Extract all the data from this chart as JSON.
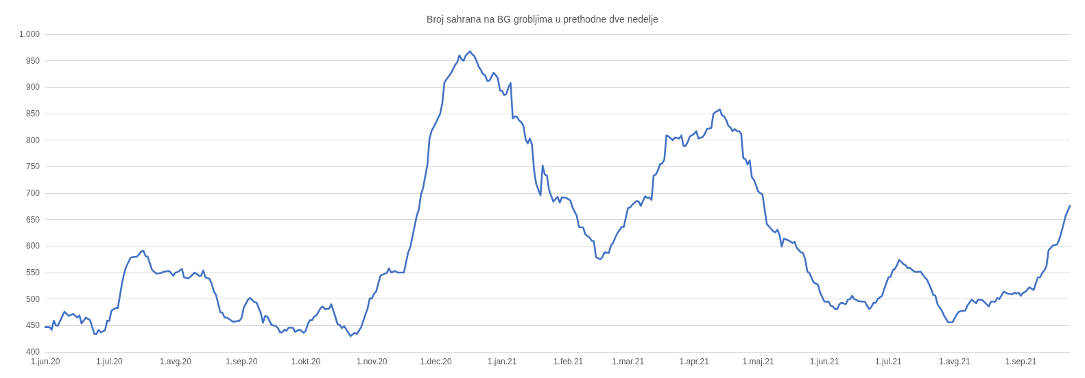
{
  "chart_data": {
    "type": "line",
    "title": "Broj sahrana na BG grobljima u prethodne dve nedelje",
    "color": "#4472c4",
    "marker": "none",
    "grid": "y",
    "x": [
      "2020-06-01",
      "2020-06-03",
      "2020-06-04",
      "2020-06-05",
      "2020-06-06",
      "2020-06-07",
      "2020-06-08",
      "2020-06-10",
      "2020-06-12",
      "2020-06-14",
      "2020-06-16",
      "2020-06-17",
      "2020-06-18",
      "2020-06-20",
      "2020-06-22",
      "2020-06-24",
      "2020-06-25",
      "2020-06-26",
      "2020-06-27",
      "2020-06-29",
      "2020-06-30",
      "2020-07-01",
      "2020-07-02",
      "2020-07-04",
      "2020-07-05",
      "2020-07-07",
      "2020-07-08",
      "2020-07-09",
      "2020-07-11",
      "2020-07-12",
      "2020-07-14",
      "2020-07-16",
      "2020-07-17",
      "2020-07-18",
      "2020-07-19",
      "2020-07-21",
      "2020-07-23",
      "2020-07-25",
      "2020-07-27",
      "2020-07-29",
      "2020-07-31",
      "2020-08-01",
      "2020-08-02",
      "2020-08-04",
      "2020-08-05",
      "2020-08-07",
      "2020-08-08",
      "2020-08-10",
      "2020-08-12",
      "2020-08-13",
      "2020-08-14",
      "2020-08-15",
      "2020-08-17",
      "2020-08-18",
      "2020-08-19",
      "2020-08-20",
      "2020-08-22",
      "2020-08-23",
      "2020-08-24",
      "2020-08-25",
      "2020-08-28",
      "2020-08-31",
      "2020-09-01",
      "2020-09-02",
      "2020-09-04",
      "2020-09-05",
      "2020-09-07",
      "2020-09-08",
      "2020-09-10",
      "2020-09-11",
      "2020-09-12",
      "2020-09-13",
      "2020-09-15",
      "2020-09-17",
      "2020-09-18",
      "2020-09-19",
      "2020-09-20",
      "2020-09-21",
      "2020-09-22",
      "2020-09-23",
      "2020-09-25",
      "2020-09-26",
      "2020-09-28",
      "2020-09-29",
      "2020-09-30",
      "2020-10-01",
      "2020-10-02",
      "2020-10-03",
      "2020-10-04",
      "2020-10-05",
      "2020-10-06",
      "2020-10-08",
      "2020-10-09",
      "2020-10-10",
      "2020-10-12",
      "2020-10-13",
      "2020-10-15",
      "2020-10-16",
      "2020-10-17",
      "2020-10-18",
      "2020-10-19",
      "2020-10-22",
      "2020-10-24",
      "2020-10-25",
      "2020-10-27",
      "2020-10-29",
      "2020-10-30",
      "2020-10-31",
      "2020-11-01",
      "2020-11-02",
      "2020-11-03",
      "2020-11-05",
      "2020-11-07",
      "2020-11-08",
      "2020-11-09",
      "2020-11-10",
      "2020-11-12",
      "2020-11-13",
      "2020-11-16",
      "2020-11-18",
      "2020-11-19",
      "2020-11-21",
      "2020-11-22",
      "2020-11-23",
      "2020-11-24",
      "2020-11-25",
      "2020-11-27",
      "2020-11-28",
      "2020-11-29",
      "2020-11-30",
      "2020-12-01",
      "2020-12-03",
      "2020-12-04",
      "2020-12-05",
      "2020-12-06",
      "2020-12-08",
      "2020-12-10",
      "2020-12-11",
      "2020-12-12",
      "2020-12-13",
      "2020-12-14",
      "2020-12-15",
      "2020-12-17",
      "2020-12-18",
      "2020-12-19",
      "2020-12-20",
      "2020-12-21",
      "2020-12-22",
      "2020-12-23",
      "2020-12-24",
      "2020-12-25",
      "2020-12-26",
      "2020-12-28",
      "2020-12-29",
      "2020-12-30",
      "2020-12-31",
      "2021-01-01",
      "2021-01-02",
      "2021-01-03",
      "2021-01-04",
      "2021-01-05",
      "2021-01-06",
      "2021-01-07",
      "2021-01-08",
      "2021-01-09",
      "2021-01-10",
      "2021-01-11",
      "2021-01-12",
      "2021-01-13",
      "2021-01-14",
      "2021-01-15",
      "2021-01-16",
      "2021-01-17",
      "2021-01-19",
      "2021-01-20",
      "2021-01-21",
      "2021-01-22",
      "2021-01-23",
      "2021-01-25",
      "2021-01-27",
      "2021-01-28",
      "2021-01-29",
      "2021-01-31",
      "2021-02-02",
      "2021-02-03",
      "2021-02-05",
      "2021-02-06",
      "2021-02-08",
      "2021-02-09",
      "2021-02-11",
      "2021-02-12",
      "2021-02-13",
      "2021-02-14",
      "2021-02-16",
      "2021-02-17",
      "2021-02-18",
      "2021-02-20",
      "2021-02-21",
      "2021-02-22",
      "2021-02-23",
      "2021-02-24",
      "2021-02-26",
      "2021-02-27",
      "2021-03-01",
      "2021-03-02",
      "2021-03-03",
      "2021-03-05",
      "2021-03-06",
      "2021-03-07",
      "2021-03-09",
      "2021-03-10",
      "2021-03-11",
      "2021-03-12",
      "2021-03-13",
      "2021-03-14",
      "2021-03-15",
      "2021-03-16",
      "2021-03-17",
      "2021-03-18",
      "2021-03-19",
      "2021-03-20",
      "2021-03-22",
      "2021-03-23",
      "2021-03-25",
      "2021-03-26",
      "2021-03-27",
      "2021-03-28",
      "2021-03-29",
      "2021-03-30",
      "2021-04-01",
      "2021-04-02",
      "2021-04-03",
      "2021-04-05",
      "2021-04-06",
      "2021-04-07",
      "2021-04-09",
      "2021-04-10",
      "2021-04-11",
      "2021-04-13",
      "2021-04-14",
      "2021-04-15",
      "2021-04-16",
      "2021-04-17",
      "2021-04-18",
      "2021-04-19",
      "2021-04-20",
      "2021-04-21",
      "2021-04-22",
      "2021-04-23",
      "2021-04-24",
      "2021-04-25",
      "2021-04-26",
      "2021-04-27",
      "2021-04-28",
      "2021-04-29",
      "2021-05-01",
      "2021-05-03",
      "2021-05-04",
      "2021-05-05",
      "2021-05-06",
      "2021-05-08",
      "2021-05-09",
      "2021-05-10",
      "2021-05-11",
      "2021-05-12",
      "2021-05-13",
      "2021-05-15",
      "2021-05-17",
      "2021-05-18",
      "2021-05-19",
      "2021-05-21",
      "2021-05-22",
      "2021-05-23",
      "2021-05-24",
      "2021-05-25",
      "2021-05-27",
      "2021-05-29",
      "2021-05-30",
      "2021-06-01",
      "2021-06-03",
      "2021-06-04",
      "2021-06-05",
      "2021-06-06",
      "2021-06-07",
      "2021-06-08",
      "2021-06-09",
      "2021-06-11",
      "2021-06-12",
      "2021-06-13",
      "2021-06-14",
      "2021-06-15",
      "2021-06-17",
      "2021-06-19",
      "2021-06-20",
      "2021-06-21",
      "2021-06-22",
      "2021-06-23",
      "2021-06-24",
      "2021-06-25",
      "2021-06-26",
      "2021-06-28",
      "2021-06-29",
      "2021-07-01",
      "2021-07-02",
      "2021-07-03",
      "2021-07-04",
      "2021-07-05",
      "2021-07-06",
      "2021-07-08",
      "2021-07-09",
      "2021-07-10",
      "2021-07-11",
      "2021-07-13",
      "2021-07-14",
      "2021-07-16",
      "2021-07-18",
      "2021-07-19",
      "2021-07-21",
      "2021-07-22",
      "2021-07-23",
      "2021-07-24",
      "2021-07-26",
      "2021-07-27",
      "2021-07-29",
      "2021-07-31",
      "2021-08-02",
      "2021-08-03",
      "2021-08-05",
      "2021-08-06",
      "2021-08-07",
      "2021-08-09",
      "2021-08-11",
      "2021-08-12",
      "2021-08-14",
      "2021-08-16",
      "2021-08-17",
      "2021-08-18",
      "2021-08-20",
      "2021-08-21",
      "2021-08-22",
      "2021-08-24",
      "2021-08-26",
      "2021-08-28",
      "2021-08-29",
      "2021-08-30",
      "2021-08-31",
      "2021-09-01",
      "2021-09-02",
      "2021-09-03",
      "2021-09-05",
      "2021-09-07",
      "2021-09-09",
      "2021-09-10",
      "2021-09-11",
      "2021-09-12",
      "2021-09-13",
      "2021-09-14",
      "2021-09-16",
      "2021-09-18",
      "2021-09-19",
      "2021-09-20",
      "2021-09-22",
      "2021-09-24"
    ],
    "values": [
      447,
      447,
      442,
      459,
      450,
      450,
      459,
      476,
      468,
      472,
      465,
      469,
      454,
      465,
      460,
      434,
      434,
      442,
      437,
      441,
      459,
      459,
      478,
      483,
      483,
      531,
      549,
      562,
      578,
      579,
      580,
      590,
      591,
      581,
      580,
      555,
      548,
      549,
      552,
      553,
      544,
      550,
      551,
      557,
      541,
      539,
      542,
      550,
      544,
      544,
      554,
      541,
      538,
      528,
      514,
      508,
      475,
      474,
      465,
      465,
      457,
      459,
      465,
      484,
      499,
      502,
      494,
      493,
      473,
      455,
      468,
      467,
      451,
      449,
      445,
      437,
      437,
      442,
      440,
      446,
      446,
      438,
      442,
      440,
      436,
      440,
      453,
      460,
      460,
      467,
      469,
      483,
      486,
      481,
      482,
      490,
      465,
      452,
      451,
      445,
      449,
      430,
      436,
      434,
      447,
      471,
      482,
      501,
      501,
      510,
      514,
      544,
      548,
      549,
      558,
      550,
      553,
      550,
      550,
      588,
      598,
      637,
      657,
      669,
      697,
      710,
      753,
      803,
      818,
      825,
      833,
      850,
      870,
      909,
      915,
      926,
      942,
      947,
      960,
      953,
      950,
      960,
      968,
      962,
      959,
      950,
      939,
      933,
      925,
      923,
      912,
      912,
      927,
      923,
      917,
      894,
      893,
      885,
      887,
      900,
      908,
      841,
      845,
      844,
      837,
      834,
      827,
      802,
      794,
      803,
      792,
      743,
      717,
      696,
      752,
      735,
      733,
      706,
      684,
      693,
      682,
      692,
      691,
      686,
      673,
      657,
      636,
      635,
      622,
      616,
      610,
      609,
      579,
      575,
      579,
      588,
      587,
      601,
      606,
      616,
      624,
      636,
      636,
      672,
      673,
      678,
      685,
      684,
      676,
      694,
      691,
      692,
      687,
      733,
      735,
      743,
      755,
      756,
      763,
      809,
      807,
      800,
      805,
      803,
      809,
      789,
      789,
      797,
      807,
      812,
      817,
      803,
      806,
      812,
      821,
      823,
      850,
      853,
      858,
      847,
      845,
      838,
      827,
      824,
      817,
      821,
      817,
      817,
      812,
      766,
      764,
      754,
      762,
      730,
      725,
      703,
      697,
      669,
      642,
      637,
      628,
      626,
      631,
      620,
      599,
      614,
      611,
      606,
      608,
      597,
      588,
      587,
      575,
      552,
      549,
      531,
      527,
      512,
      495,
      495,
      487,
      486,
      481,
      481,
      490,
      493,
      490,
      499,
      500,
      506,
      500,
      496,
      495,
      495,
      487,
      481,
      485,
      493,
      493,
      500,
      506,
      519,
      541,
      542,
      554,
      557,
      564,
      574,
      566,
      564,
      558,
      559,
      552,
      551,
      552,
      541,
      537,
      519,
      508,
      506,
      490,
      478,
      469,
      456,
      456,
      471,
      476,
      478,
      478,
      488,
      499,
      492,
      499,
      498,
      490,
      486,
      495,
      495,
      502,
      500,
      514,
      510,
      509,
      512,
      510,
      512,
      506,
      512,
      513,
      522,
      517,
      541,
      541,
      549,
      554,
      562,
      592,
      601,
      603,
      612,
      626,
      657,
      676
    ],
    "xlim": [
      "2020-06-01",
      "2021-09-24"
    ],
    "xticks": [
      {
        "value": "2020-06-01",
        "label": "1.jun.20"
      },
      {
        "value": "2020-07-01",
        "label": "1.jul.20"
      },
      {
        "value": "2020-08-01",
        "label": "1.avg.20"
      },
      {
        "value": "2020-09-01",
        "label": "1.sep.20"
      },
      {
        "value": "2020-10-01",
        "label": "1.okt.20"
      },
      {
        "value": "2020-11-01",
        "label": "1.nov.20"
      },
      {
        "value": "2020-12-01",
        "label": "1.dec.20"
      },
      {
        "value": "2021-01-01",
        "label": "1.jan.21"
      },
      {
        "value": "2021-02-01",
        "label": "1.feb.21"
      },
      {
        "value": "2021-03-01",
        "label": "1.mar.21"
      },
      {
        "value": "2021-04-01",
        "label": "1.apr.21"
      },
      {
        "value": "2021-05-01",
        "label": "1.maj.21"
      },
      {
        "value": "2021-06-01",
        "label": "1.jun.21"
      },
      {
        "value": "2021-07-01",
        "label": "1.jul.21"
      },
      {
        "value": "2021-08-01",
        "label": "1.avg.21"
      },
      {
        "value": "2021-09-01",
        "label": "1.sep.21"
      }
    ],
    "ylim": [
      400,
      1000
    ],
    "yticks": [
      400,
      450,
      500,
      550,
      600,
      650,
      700,
      750,
      800,
      850,
      900,
      950,
      {
        "value": 1000,
        "label": "1.000"
      }
    ]
  }
}
